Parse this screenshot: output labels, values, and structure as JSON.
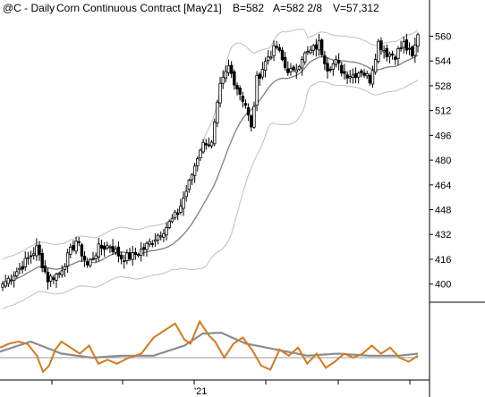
{
  "chart_data": {
    "type": "candlestick",
    "header": {
      "symbol": "@C - Daily",
      "name": "Corn Continuous Contract [May21]",
      "bid": "B=582",
      "ask": "A=582 2/8",
      "volume": "V=57,312"
    },
    "price_axis": {
      "ticks": [
        "400",
        "416",
        "432",
        "448",
        "464",
        "480",
        "496",
        "512",
        "528",
        "544",
        "560"
      ],
      "ylim": [
        390,
        573
      ]
    },
    "x_axis": {
      "label": "'21"
    },
    "close_anchors": [
      [
        0,
        400
      ],
      [
        6,
        410
      ],
      [
        12,
        423
      ],
      [
        16,
        403
      ],
      [
        20,
        407
      ],
      [
        26,
        428
      ],
      [
        30,
        412
      ],
      [
        34,
        423
      ],
      [
        38,
        425
      ],
      [
        42,
        417
      ],
      [
        46,
        418
      ],
      [
        50,
        423
      ],
      [
        54,
        430
      ],
      [
        58,
        437
      ],
      [
        62,
        446
      ],
      [
        66,
        465
      ],
      [
        70,
        488
      ],
      [
        72,
        492
      ],
      [
        74,
        490
      ],
      [
        77,
        527
      ],
      [
        80,
        540
      ],
      [
        83,
        527
      ],
      [
        86,
        516
      ],
      [
        88,
        500
      ],
      [
        90,
        532
      ],
      [
        94,
        547
      ],
      [
        97,
        553
      ],
      [
        100,
        540
      ],
      [
        103,
        536
      ],
      [
        106,
        547
      ],
      [
        109,
        550
      ],
      [
        112,
        555
      ],
      [
        115,
        540
      ],
      [
        118,
        543
      ],
      [
        121,
        536
      ],
      [
        124,
        535
      ],
      [
        127,
        538
      ],
      [
        130,
        532
      ],
      [
        133,
        556
      ],
      [
        136,
        549
      ],
      [
        139,
        548
      ],
      [
        142,
        555
      ],
      [
        145,
        546
      ],
      [
        147,
        561
      ]
    ],
    "indicator": {
      "fast_anchors": [
        [
          0,
          0.25
        ],
        [
          3,
          0.35
        ],
        [
          6,
          0.4
        ],
        [
          9,
          0.34
        ],
        [
          12,
          0.05
        ],
        [
          14,
          -0.35
        ],
        [
          16,
          -0.2
        ],
        [
          18,
          0.2
        ],
        [
          20,
          0.4
        ],
        [
          23,
          0.25
        ],
        [
          26,
          0.1
        ],
        [
          29,
          0.3
        ],
        [
          32,
          -0.15
        ],
        [
          35,
          -0.05
        ],
        [
          38,
          -0.15
        ],
        [
          42,
          0.0
        ],
        [
          46,
          0.1
        ],
        [
          50,
          0.5
        ],
        [
          54,
          0.7
        ],
        [
          57,
          0.85
        ],
        [
          60,
          0.45
        ],
        [
          62,
          0.35
        ],
        [
          65,
          0.9
        ],
        [
          68,
          0.55
        ],
        [
          70,
          0.4
        ],
        [
          73,
          0.0
        ],
        [
          76,
          0.35
        ],
        [
          79,
          0.5
        ],
        [
          82,
          0.2
        ],
        [
          85,
          -0.2
        ],
        [
          88,
          -0.3
        ],
        [
          91,
          0.2
        ],
        [
          94,
          0.05
        ],
        [
          97,
          0.25
        ],
        [
          100,
          -0.15
        ],
        [
          103,
          0.1
        ],
        [
          106,
          -0.25
        ],
        [
          109,
          -0.1
        ],
        [
          112,
          0.1
        ],
        [
          115,
          0.0
        ],
        [
          118,
          0.1
        ],
        [
          121,
          0.3
        ],
        [
          124,
          0.1
        ],
        [
          127,
          0.25
        ],
        [
          130,
          0.0
        ],
        [
          133,
          -0.1
        ],
        [
          136,
          0.05
        ]
      ],
      "slow_anchors": [
        [
          0,
          0.15
        ],
        [
          10,
          0.4
        ],
        [
          20,
          0.1
        ],
        [
          30,
          0.0
        ],
        [
          40,
          0.05
        ],
        [
          50,
          0.05
        ],
        [
          60,
          0.3
        ],
        [
          66,
          0.6
        ],
        [
          72,
          0.62
        ],
        [
          80,
          0.35
        ],
        [
          90,
          0.2
        ],
        [
          100,
          0.05
        ],
        [
          110,
          0.1
        ],
        [
          120,
          0.05
        ],
        [
          130,
          0.05
        ],
        [
          136,
          0.1
        ]
      ]
    },
    "colors": {
      "candle": "#000000",
      "ma": "#7f7f7f",
      "band": "#bfbfbf",
      "fast": "#d27a1e",
      "slow": "#8c8c8c",
      "baseline": "#9a9a9a"
    }
  }
}
